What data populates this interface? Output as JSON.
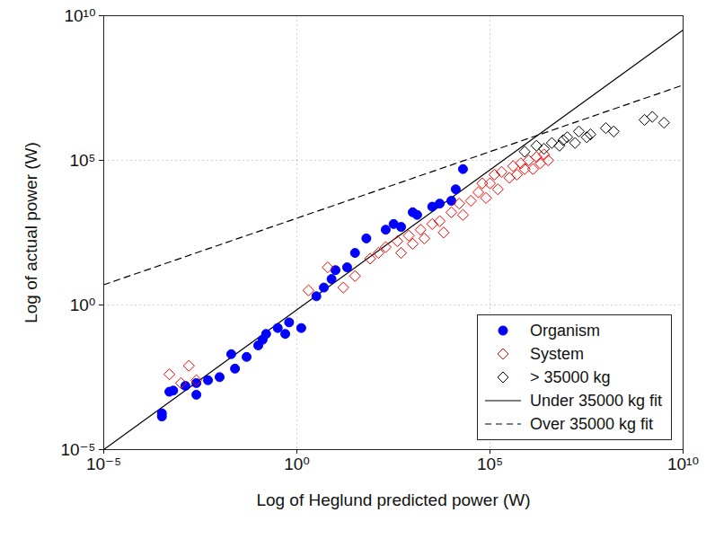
{
  "chart_data": {
    "type": "scatter",
    "xlabel": "Log of Heglund predicted power (W)",
    "ylabel": "Log of actual power (W)",
    "log": true,
    "grid": true,
    "legend": "lower right",
    "xlim": [
      1e-05,
      10000000000.0
    ],
    "ylim": [
      1e-05,
      10000000000.0
    ],
    "xticks": [
      {
        "value": 1e-05,
        "label": "10⁻⁵"
      },
      {
        "value": 1,
        "label": "10⁰"
      },
      {
        "value": 100000.0,
        "label": "10⁵"
      },
      {
        "value": 10000000000.0,
        "label": "10¹⁰"
      }
    ],
    "yticks": [
      {
        "value": 1e-05,
        "label": "10⁻⁵"
      },
      {
        "value": 1,
        "label": "10⁰"
      },
      {
        "value": 100000.0,
        "label": "10⁵"
      },
      {
        "value": 10000000000.0,
        "label": "10¹⁰"
      }
    ],
    "series": [
      {
        "name": "Organism",
        "type": "scatter",
        "marker": "circle",
        "color": "#0000ff",
        "x": [
          0.00032,
          0.00032,
          0.0005,
          0.00063,
          0.0013,
          0.0025,
          0.0025,
          0.005,
          0.01,
          0.02,
          0.025,
          0.05,
          0.1,
          0.13,
          0.16,
          0.32,
          0.5,
          0.63,
          1.3,
          3.2,
          5,
          7.9,
          10,
          20,
          32,
          63,
          200,
          320,
          500,
          1000,
          1300,
          3200,
          5000,
          10000,
          13000,
          20000
        ],
        "values": [
          0.00014,
          0.00018,
          0.001,
          0.0011,
          0.0016,
          0.002,
          0.00079,
          0.0025,
          0.0032,
          0.02,
          0.0063,
          0.016,
          0.04,
          0.063,
          0.1,
          0.16,
          0.1,
          0.25,
          0.16,
          2,
          4,
          7.9,
          16,
          20,
          63,
          200,
          400,
          630,
          500,
          1600,
          1300,
          2500,
          3200,
          4000,
          10000,
          50000
        ]
      },
      {
        "name": "System",
        "type": "scatter",
        "marker": "diamond",
        "color": "#ff0000",
        "x": [
          0.0005,
          0.001,
          0.0016,
          0.0025,
          2,
          6.3,
          16,
          32,
          79,
          130,
          200,
          400,
          500,
          790,
          1000,
          1600,
          2000,
          3200,
          5000,
          6300,
          10000,
          16000,
          20000,
          32000,
          50000,
          63000,
          79000,
          100000,
          130000,
          160000,
          200000,
          320000,
          400000,
          500000,
          630000,
          790000,
          1000000,
          1300000,
          1600000,
          2000000,
          2500000,
          3200000
        ],
        "values": [
          0.004,
          0.002,
          0.0079,
          0.0025,
          3.2,
          20,
          4,
          10,
          40,
          63,
          100,
          160,
          63,
          250,
          130,
          400,
          200,
          630,
          790,
          320,
          1600,
          3200,
          1300,
          4000,
          7900,
          16000,
          5000,
          16000,
          32000,
          10000,
          40000,
          25000,
          63000,
          32000,
          79000,
          50000,
          100000,
          50000,
          130000,
          79000,
          160000,
          100000
        ]
      },
      {
        "name": "> 35000 kg",
        "type": "scatter",
        "marker": "diamond",
        "color": "#000000",
        "x": [
          790000,
          1600000,
          2500000,
          4000000,
          6300000,
          7900000,
          10000000,
          16000000,
          20000000,
          32000000,
          40000000,
          100000000.0,
          160000000.0,
          1000000000.0,
          1600000000.0,
          3200000000.0
        ],
        "values": [
          200000,
          320000,
          250000,
          400000,
          320000,
          500000,
          630000,
          400000,
          1000000,
          630000,
          790000,
          1300000,
          1000000,
          2500000,
          3200000,
          2000000
        ]
      },
      {
        "name": "Under 35000 kg fit",
        "type": "line",
        "line_style": "solid",
        "color": "#000000",
        "x": [
          1e-05,
          10000000000.0
        ],
        "values": [
          1e-05,
          3200000000.0
        ]
      },
      {
        "name": "Over 35000 kg fit",
        "type": "line",
        "line_style": "dashed",
        "color": "#000000",
        "x": [
          1e-05,
          10000000000.0
        ],
        "values": [
          5,
          40000000.0
        ]
      }
    ]
  }
}
